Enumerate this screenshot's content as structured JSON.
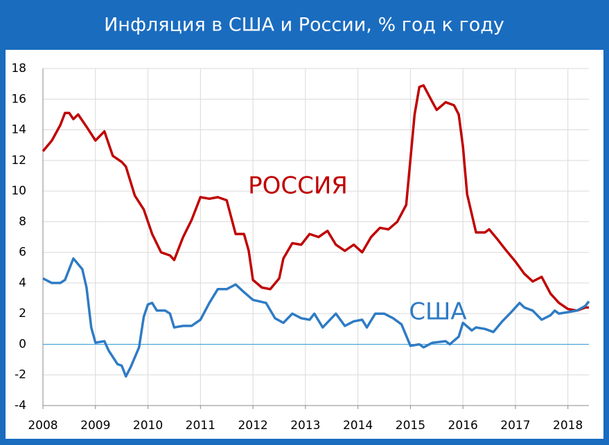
{
  "chart_data": {
    "type": "line",
    "title": "Инфляция в США и России, % год к году",
    "xlim": [
      2008,
      2018.4
    ],
    "xticks": [
      2008,
      2009,
      2010,
      2011,
      2012,
      2013,
      2014,
      2015,
      2016,
      2017,
      2018
    ],
    "ylim": [
      -4,
      18
    ],
    "yticks": [
      -4,
      -2,
      0,
      2,
      4,
      6,
      8,
      10,
      12,
      14,
      16,
      18
    ],
    "grid": true,
    "series": [
      {
        "name": "РОССИЯ",
        "color": "#c00000",
        "x": [
          2008.0,
          2008.17,
          2008.33,
          2008.42,
          2008.5,
          2008.58,
          2008.67,
          2008.83,
          2009.0,
          2009.17,
          2009.33,
          2009.5,
          2009.58,
          2009.75,
          2009.92,
          2010.08,
          2010.25,
          2010.42,
          2010.5,
          2010.67,
          2010.83,
          2011.0,
          2011.17,
          2011.33,
          2011.5,
          2011.67,
          2011.83,
          2011.92,
          2012.0,
          2012.17,
          2012.33,
          2012.5,
          2012.58,
          2012.75,
          2012.92,
          2013.08,
          2013.25,
          2013.42,
          2013.58,
          2013.75,
          2013.92,
          2014.08,
          2014.25,
          2014.42,
          2014.58,
          2014.75,
          2014.92,
          2015.08,
          2015.17,
          2015.25,
          2015.42,
          2015.5,
          2015.67,
          2015.83,
          2015.92,
          2016.0,
          2016.08,
          2016.25,
          2016.42,
          2016.5,
          2016.67,
          2016.83,
          2017.0,
          2017.17,
          2017.33,
          2017.5,
          2017.67,
          2017.83,
          2018.0,
          2018.17,
          2018.33,
          2018.4
        ],
        "values": [
          12.6,
          13.3,
          14.3,
          15.1,
          15.1,
          14.7,
          15.0,
          14.2,
          13.3,
          13.9,
          12.3,
          11.9,
          11.6,
          9.7,
          8.8,
          7.2,
          6.0,
          5.8,
          5.5,
          7.0,
          8.1,
          9.6,
          9.5,
          9.6,
          9.4,
          7.2,
          7.2,
          6.1,
          4.2,
          3.7,
          3.6,
          4.3,
          5.6,
          6.6,
          6.5,
          7.2,
          7.0,
          7.4,
          6.5,
          6.1,
          6.5,
          6.0,
          7.0,
          7.6,
          7.5,
          8.0,
          9.1,
          15.0,
          16.8,
          16.9,
          15.8,
          15.3,
          15.8,
          15.6,
          15.0,
          12.9,
          9.8,
          7.3,
          7.3,
          7.5,
          6.8,
          6.1,
          5.4,
          4.6,
          4.1,
          4.4,
          3.3,
          2.7,
          2.3,
          2.2,
          2.4,
          2.4
        ]
      },
      {
        "name": "США",
        "color": "#2e7bc4",
        "x": [
          2008.0,
          2008.17,
          2008.33,
          2008.42,
          2008.58,
          2008.75,
          2008.83,
          2008.92,
          2009.0,
          2009.17,
          2009.25,
          2009.42,
          2009.5,
          2009.58,
          2009.67,
          2009.83,
          2009.92,
          2010.0,
          2010.08,
          2010.17,
          2010.33,
          2010.42,
          2010.5,
          2010.67,
          2010.83,
          2011.0,
          2011.17,
          2011.33,
          2011.5,
          2011.67,
          2011.83,
          2012.0,
          2012.25,
          2012.42,
          2012.58,
          2012.75,
          2012.92,
          2013.08,
          2013.17,
          2013.33,
          2013.58,
          2013.75,
          2013.92,
          2014.08,
          2014.17,
          2014.33,
          2014.5,
          2014.67,
          2014.83,
          2015.0,
          2015.17,
          2015.25,
          2015.42,
          2015.67,
          2015.75,
          2015.92,
          2016.0,
          2016.17,
          2016.25,
          2016.42,
          2016.58,
          2016.75,
          2016.92,
          2017.08,
          2017.17,
          2017.33,
          2017.5,
          2017.67,
          2017.75,
          2017.83,
          2018.0,
          2018.17,
          2018.33,
          2018.4
        ],
        "values": [
          4.3,
          4.0,
          4.0,
          4.2,
          5.6,
          4.9,
          3.7,
          1.1,
          0.1,
          0.2,
          -0.4,
          -1.3,
          -1.4,
          -2.1,
          -1.5,
          -0.2,
          1.8,
          2.6,
          2.7,
          2.2,
          2.2,
          2.0,
          1.1,
          1.2,
          1.2,
          1.6,
          2.7,
          3.6,
          3.6,
          3.9,
          3.4,
          2.9,
          2.7,
          1.7,
          1.4,
          2.0,
          1.7,
          1.6,
          2.0,
          1.1,
          2.0,
          1.2,
          1.5,
          1.6,
          1.1,
          2.0,
          2.0,
          1.7,
          1.3,
          -0.1,
          0.0,
          -0.2,
          0.1,
          0.2,
          0.0,
          0.5,
          1.4,
          0.9,
          1.1,
          1.0,
          0.8,
          1.5,
          2.1,
          2.7,
          2.4,
          2.2,
          1.6,
          1.9,
          2.2,
          2.0,
          2.1,
          2.2,
          2.5,
          2.8
        ]
      }
    ]
  }
}
